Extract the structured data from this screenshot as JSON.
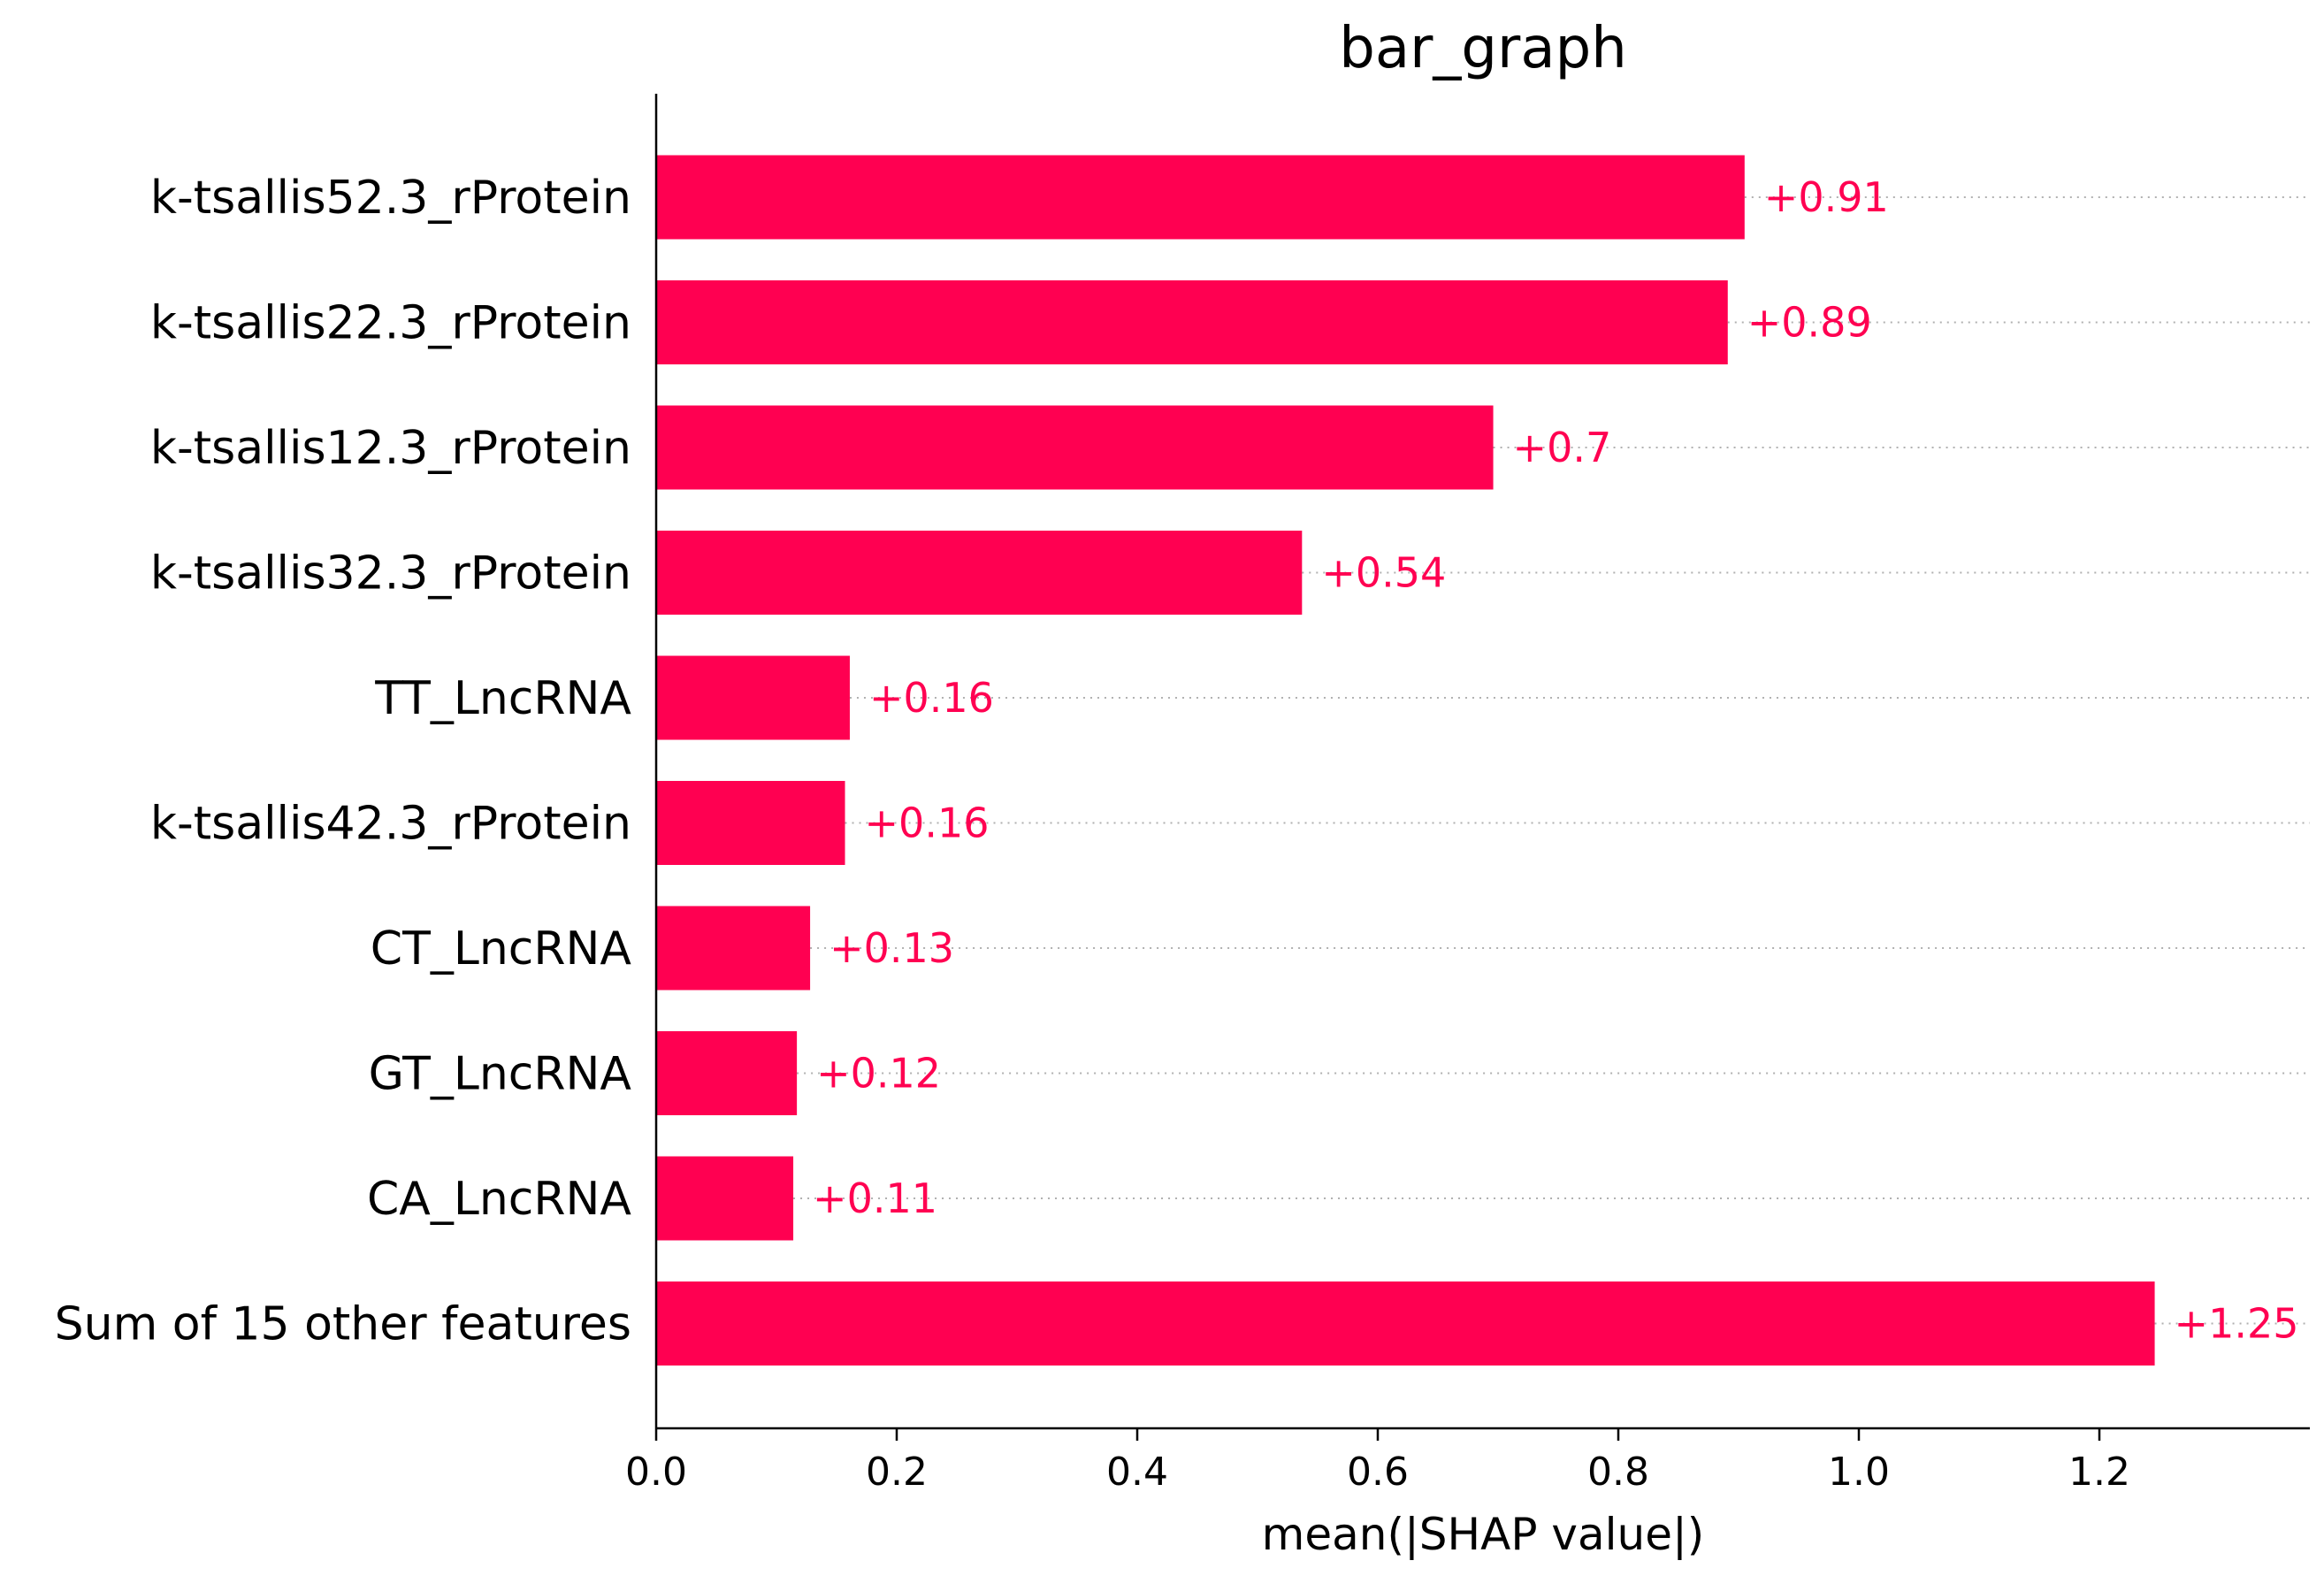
{
  "chart_data": {
    "type": "bar",
    "orientation": "horizontal",
    "title": "bar_graph",
    "xlabel": "mean(|SHAP value|)",
    "ylabel": "",
    "xlim": [
      0,
      1.375
    ],
    "xticks": [
      "0.0",
      "0.2",
      "0.4",
      "0.6",
      "0.8",
      "1.0",
      "1.2"
    ],
    "categories": [
      "k-tsallis52.3_rProtein",
      "k-tsallis22.3_rProtein",
      "k-tsallis12.3_rProtein",
      "k-tsallis32.3_rProtein",
      "TT_LncRNA",
      "k-tsallis42.3_rProtein",
      "CT_LncRNA",
      "GT_LncRNA",
      "CA_LncRNA",
      "Sum of 15 other features"
    ],
    "values": [
      0.905,
      0.891,
      0.696,
      0.537,
      0.161,
      0.157,
      0.128,
      0.117,
      0.114,
      1.246
    ],
    "value_labels": [
      "+0.91",
      "+0.89",
      "+0.7",
      "+0.54",
      "+0.16",
      "+0.16",
      "+0.13",
      "+0.12",
      "+0.11",
      "+1.25"
    ],
    "bar_color": "#ff0051",
    "grid": false,
    "guide_lines": "dotted"
  }
}
